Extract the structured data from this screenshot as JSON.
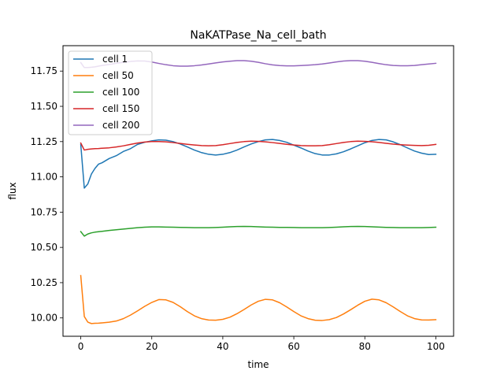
{
  "chart_data": {
    "type": "line",
    "title": "NaKATPase_Na_cell_bath",
    "xlabel": "time",
    "ylabel": "flux",
    "xlim": [
      -5,
      105
    ],
    "ylim": [
      9.87,
      11.93
    ],
    "xticks": [
      0,
      20,
      40,
      60,
      80,
      100
    ],
    "xtick_labels": [
      "0",
      "20",
      "40",
      "60",
      "80",
      "100"
    ],
    "yticks": [
      10.0,
      10.25,
      10.5,
      10.75,
      11.0,
      11.25,
      11.5,
      11.75
    ],
    "ytick_labels": [
      "10.00",
      "10.25",
      "10.50",
      "10.75",
      "11.00",
      "11.25",
      "11.50",
      "11.75"
    ],
    "grid": false,
    "legend_position": "top-left",
    "x": [
      0,
      1,
      2,
      3,
      4,
      5,
      6,
      8,
      10,
      12,
      14,
      16,
      18,
      20,
      22,
      24,
      26,
      28,
      30,
      32,
      34,
      36,
      38,
      40,
      42,
      44,
      46,
      48,
      50,
      52,
      54,
      56,
      58,
      60,
      62,
      64,
      66,
      68,
      70,
      72,
      74,
      76,
      78,
      80,
      82,
      84,
      86,
      88,
      90,
      92,
      94,
      96,
      98,
      100
    ],
    "series": [
      {
        "name": "cell 1",
        "color": "#1f77b4",
        "values": [
          11.23,
          10.92,
          10.95,
          11.02,
          11.06,
          11.09,
          11.1,
          11.13,
          11.15,
          11.18,
          11.2,
          11.23,
          11.245,
          11.255,
          11.262,
          11.26,
          11.25,
          11.233,
          11.212,
          11.19,
          11.172,
          11.16,
          11.155,
          11.16,
          11.172,
          11.19,
          11.212,
          11.233,
          11.25,
          11.262,
          11.265,
          11.258,
          11.245,
          11.225,
          11.205,
          11.183,
          11.165,
          11.155,
          11.155,
          11.163,
          11.178,
          11.198,
          11.22,
          11.242,
          11.258,
          11.265,
          11.262,
          11.248,
          11.228,
          11.205,
          11.183,
          11.168,
          11.158,
          11.16
        ]
      },
      {
        "name": "cell 50",
        "color": "#ff7f0e",
        "values": [
          10.3,
          10.01,
          9.97,
          9.96,
          9.962,
          9.963,
          9.965,
          9.97,
          9.978,
          9.995,
          10.02,
          10.05,
          10.082,
          10.11,
          10.13,
          10.128,
          10.11,
          10.08,
          10.045,
          10.015,
          9.995,
          9.985,
          9.984,
          9.99,
          10.005,
          10.03,
          10.06,
          10.092,
          10.118,
          10.132,
          10.128,
          10.108,
          10.078,
          10.045,
          10.015,
          9.995,
          9.984,
          9.982,
          9.988,
          10.003,
          10.028,
          10.058,
          10.09,
          10.118,
          10.133,
          10.128,
          10.108,
          10.078,
          10.045,
          10.015,
          9.995,
          9.986,
          9.985,
          9.988
        ]
      },
      {
        "name": "cell 100",
        "color": "#2ca02c",
        "values": [
          10.612,
          10.58,
          10.595,
          10.603,
          10.608,
          10.611,
          10.614,
          10.62,
          10.625,
          10.63,
          10.635,
          10.64,
          10.643,
          10.645,
          10.645,
          10.644,
          10.643,
          10.642,
          10.641,
          10.64,
          10.64,
          10.64,
          10.641,
          10.643,
          10.646,
          10.648,
          10.649,
          10.648,
          10.646,
          10.644,
          10.643,
          10.642,
          10.642,
          10.641,
          10.64,
          10.64,
          10.64,
          10.64,
          10.641,
          10.643,
          10.646,
          10.648,
          10.649,
          10.648,
          10.646,
          10.644,
          10.642,
          10.641,
          10.64,
          10.64,
          10.64,
          10.64,
          10.641,
          10.643
        ]
      },
      {
        "name": "cell 150",
        "color": "#d62728",
        "values": [
          11.24,
          11.19,
          11.195,
          11.198,
          11.2,
          11.201,
          11.203,
          11.206,
          11.212,
          11.22,
          11.23,
          11.24,
          11.247,
          11.25,
          11.25,
          11.248,
          11.243,
          11.237,
          11.231,
          11.226,
          11.222,
          11.22,
          11.222,
          11.228,
          11.236,
          11.244,
          11.25,
          11.253,
          11.252,
          11.248,
          11.243,
          11.237,
          11.231,
          11.226,
          11.222,
          11.22,
          11.22,
          11.222,
          11.228,
          11.236,
          11.244,
          11.25,
          11.253,
          11.252,
          11.249,
          11.244,
          11.238,
          11.232,
          11.228,
          11.225,
          11.223,
          11.222,
          11.224,
          11.23
        ]
      },
      {
        "name": "cell 200",
        "color": "#9467bd",
        "values": [
          11.81,
          11.775,
          11.775,
          11.777,
          11.78,
          11.785,
          11.79,
          11.797,
          11.805,
          11.812,
          11.818,
          11.822,
          11.821,
          11.814,
          11.804,
          11.795,
          11.788,
          11.785,
          11.785,
          11.788,
          11.793,
          11.8,
          11.808,
          11.815,
          11.82,
          11.824,
          11.824,
          11.82,
          11.812,
          11.802,
          11.794,
          11.789,
          11.787,
          11.787,
          11.789,
          11.792,
          11.795,
          11.8,
          11.807,
          11.815,
          11.821,
          11.824,
          11.824,
          11.82,
          11.812,
          11.803,
          11.795,
          11.79,
          11.788,
          11.788,
          11.79,
          11.795,
          11.8,
          11.805
        ]
      }
    ]
  }
}
